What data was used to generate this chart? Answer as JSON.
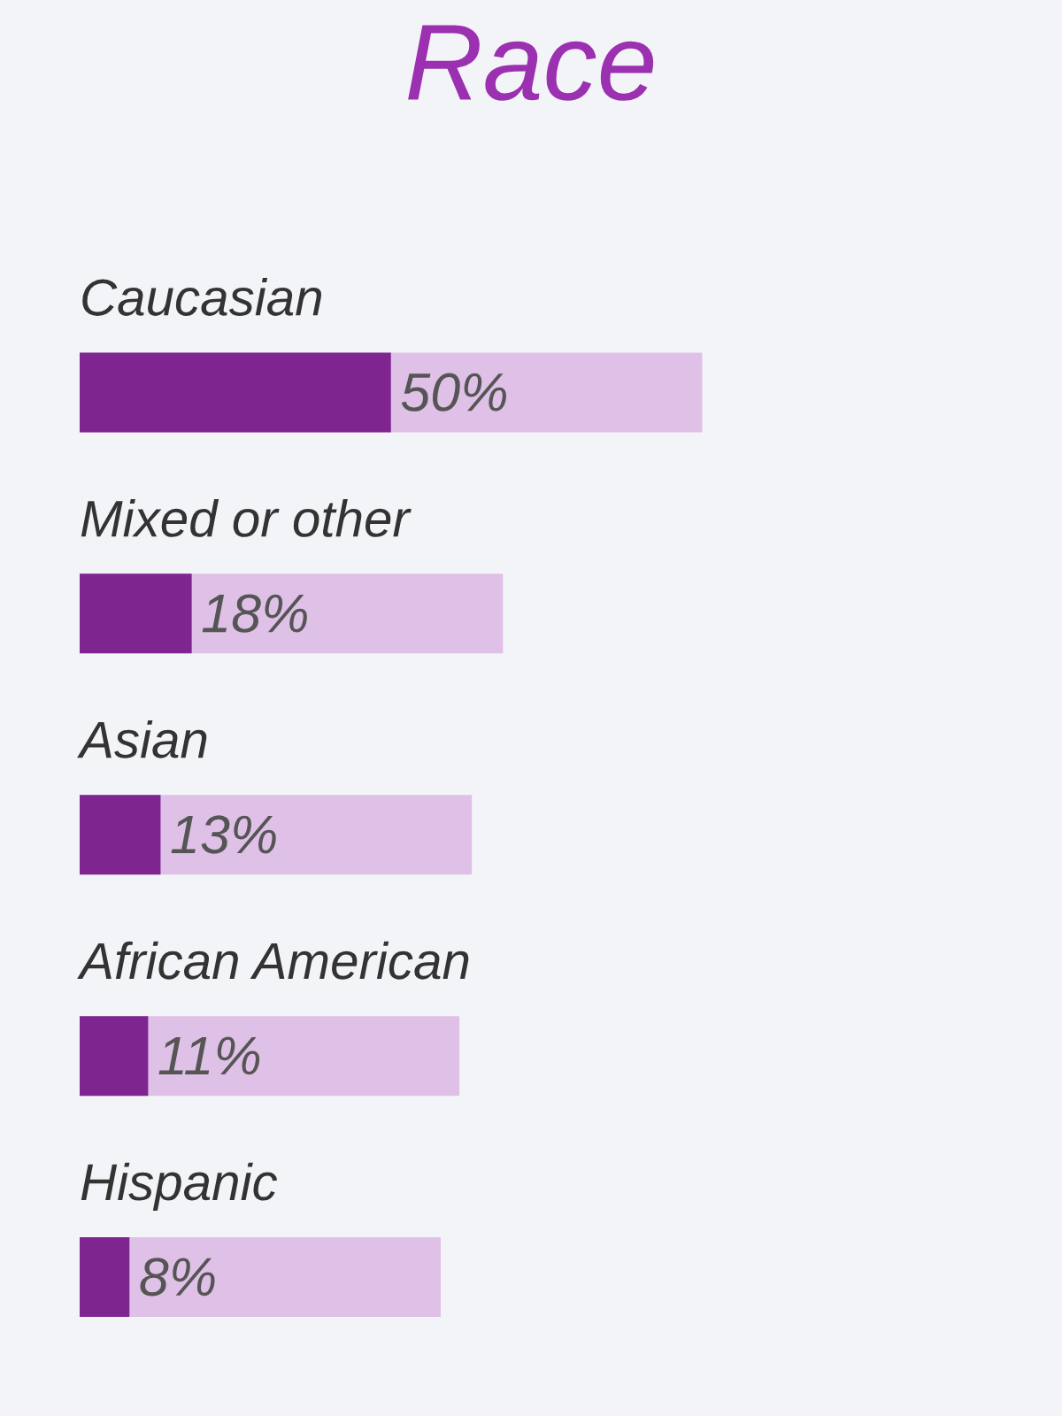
{
  "chart_data": {
    "type": "bar",
    "title": "Race",
    "orientation": "horizontal",
    "categories": [
      "Caucasian",
      "Mixed or other",
      "Asian",
      "African American",
      "Hispanic"
    ],
    "series": [
      {
        "color": "#7e2590",
        "values": [
          50,
          18,
          13,
          11,
          8
        ],
        "value_labels": [
          "50%",
          "18%",
          "13%",
          "11%",
          "8%"
        ]
      }
    ]
  }
}
